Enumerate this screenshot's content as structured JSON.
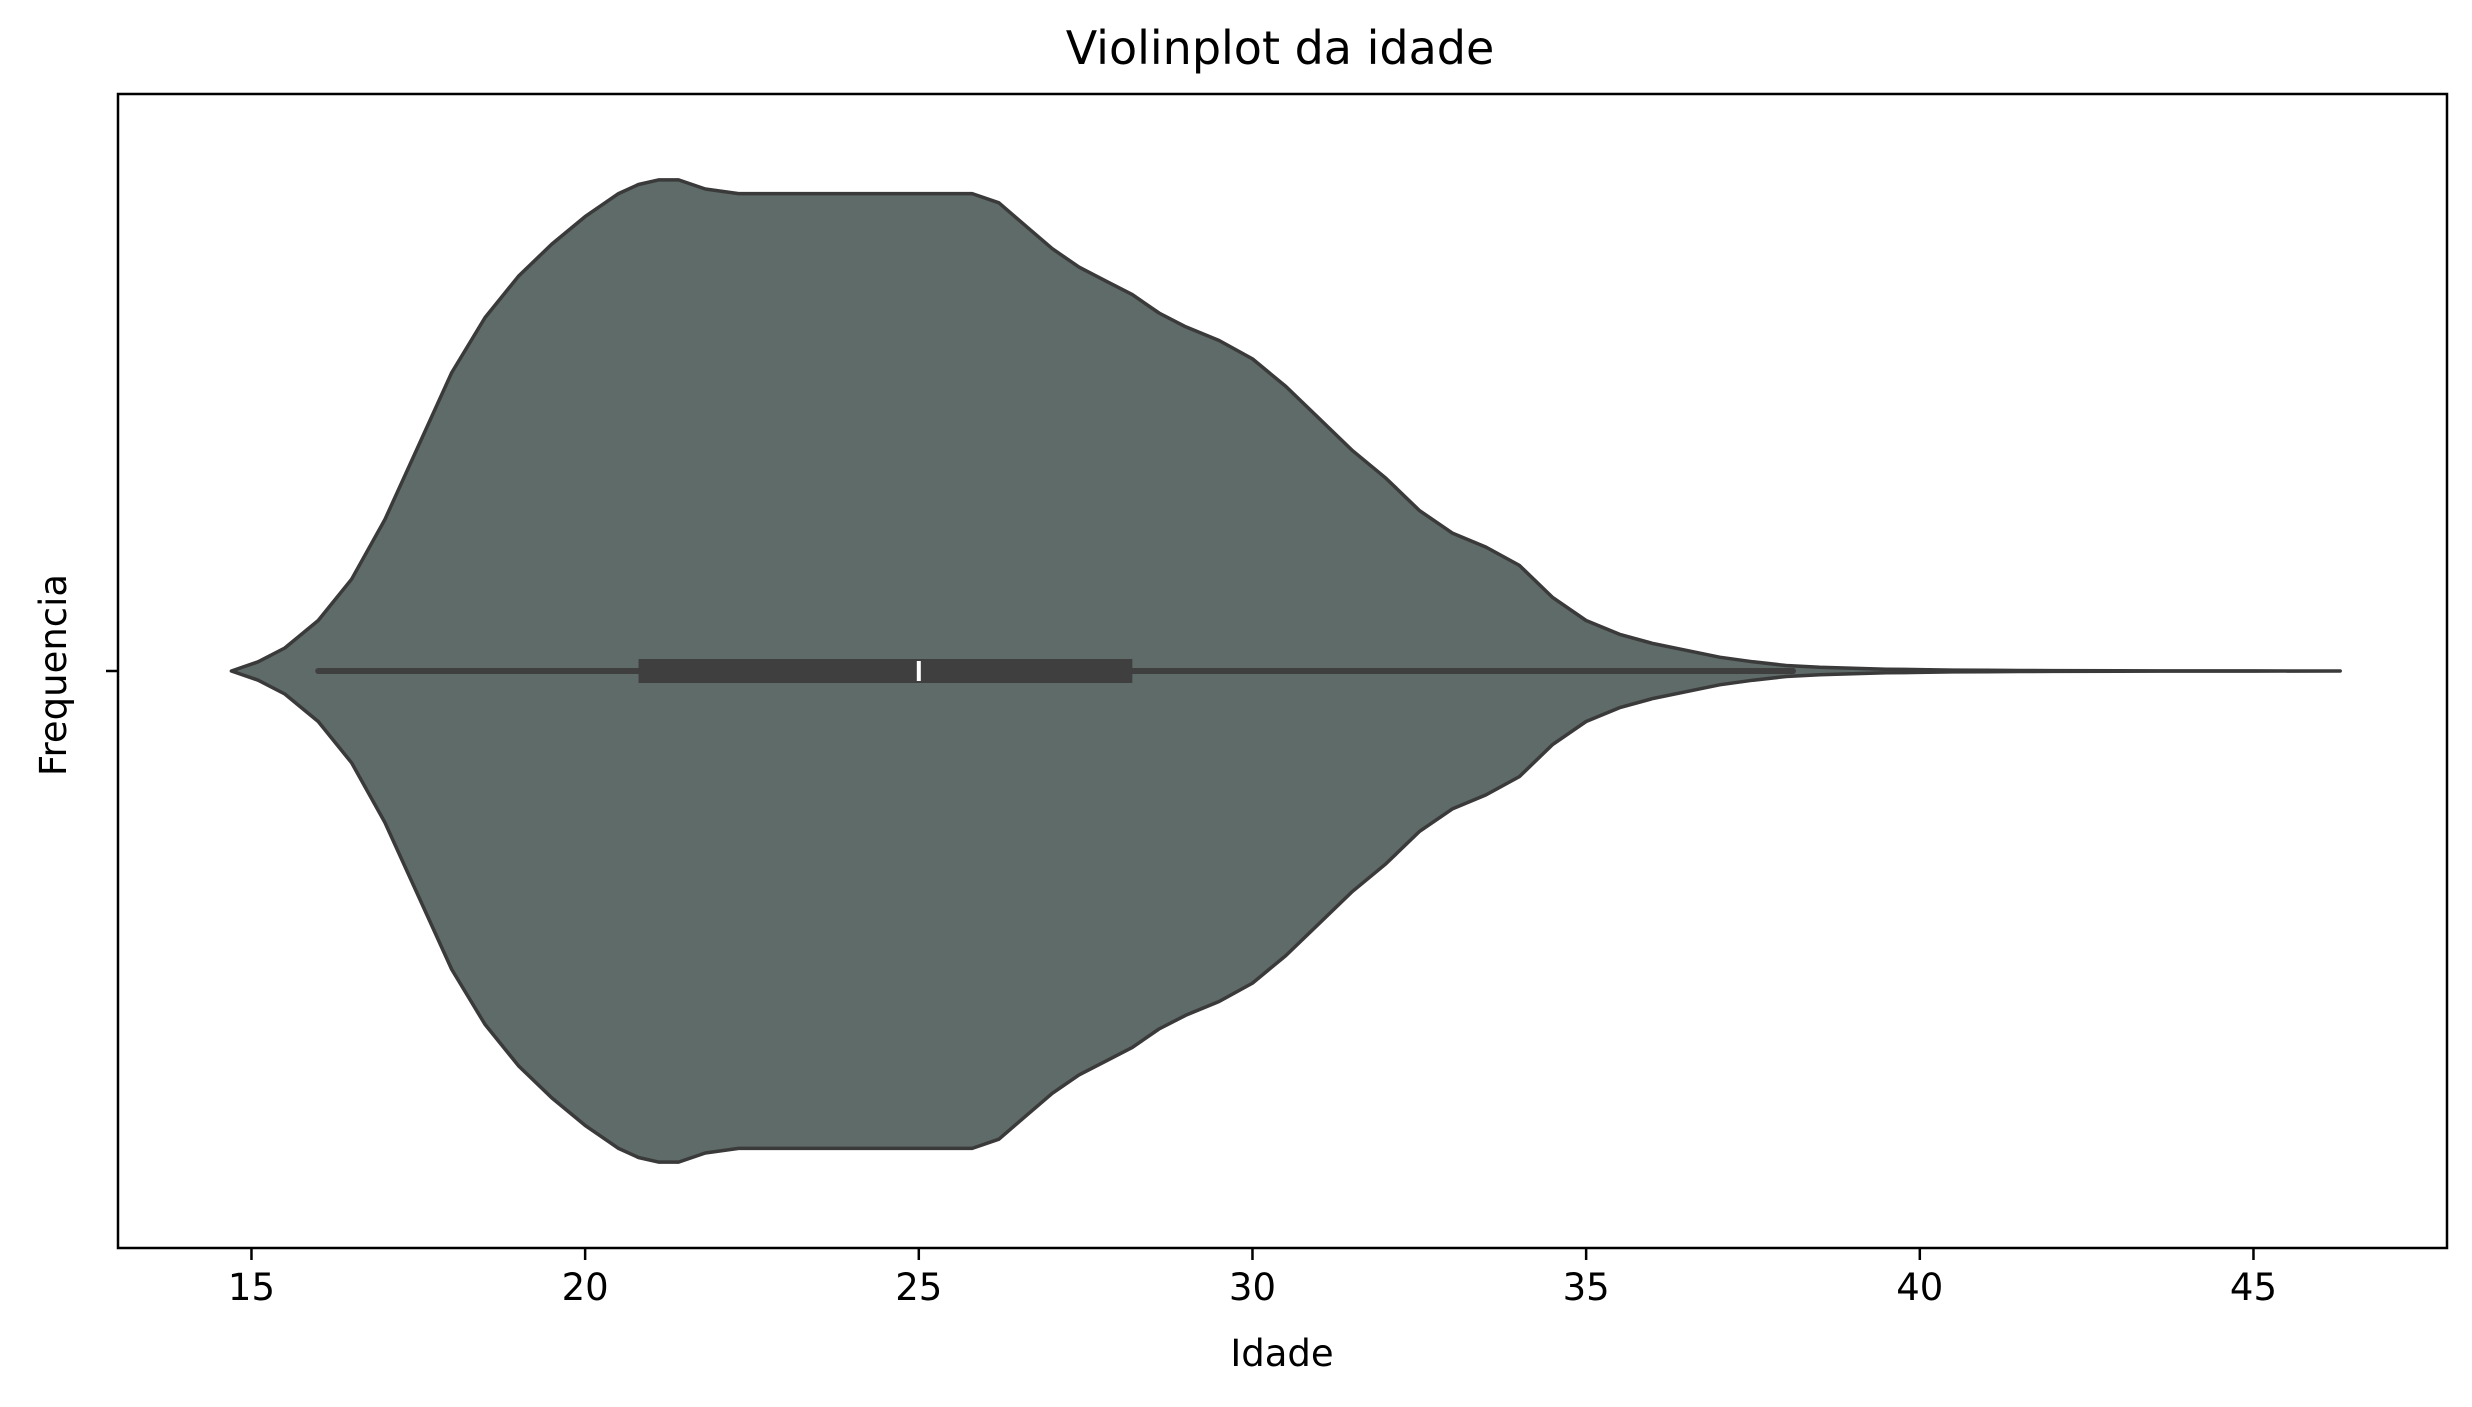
{
  "chart_data": {
    "type": "violin",
    "title": "Violinplot da idade",
    "xlabel": "Idade",
    "ylabel": "Frequencia",
    "xlim": [
      13,
      47.9
    ],
    "xticks": [
      15,
      20,
      25,
      30,
      35,
      40,
      45
    ],
    "fill_color": "#5e6b69",
    "edge_color": "#3a3a3a",
    "grid": false,
    "density": {
      "x": [
        14.7,
        15.1,
        15.5,
        16.0,
        16.5,
        17.0,
        17.5,
        18.0,
        18.5,
        19.0,
        19.5,
        20.0,
        20.5,
        20.8,
        21.1,
        21.4,
        21.8,
        22.3,
        22.8,
        23.3,
        23.9,
        24.4,
        24.8,
        25.3,
        25.8,
        26.2,
        26.6,
        27.0,
        27.4,
        27.8,
        28.2,
        28.6,
        29.0,
        29.5,
        30.0,
        30.5,
        31.0,
        31.5,
        32.0,
        32.5,
        33.0,
        33.5,
        34.0,
        34.5,
        35.0,
        35.5,
        36.0,
        36.5,
        37.0,
        37.5,
        38.0,
        38.5,
        39.0,
        39.5,
        40.0,
        40.5,
        41.0,
        41.5,
        42.0,
        43.0,
        44.0,
        45.0,
        46.3
      ],
      "y": [
        0.0,
        0.02,
        0.05,
        0.11,
        0.2,
        0.33,
        0.49,
        0.65,
        0.77,
        0.86,
        0.93,
        0.99,
        1.04,
        1.06,
        1.07,
        1.07,
        1.05,
        1.04,
        1.04,
        1.04,
        1.04,
        1.04,
        1.04,
        1.04,
        1.04,
        1.02,
        0.97,
        0.92,
        0.88,
        0.85,
        0.82,
        0.78,
        0.75,
        0.72,
        0.68,
        0.62,
        0.55,
        0.48,
        0.42,
        0.35,
        0.3,
        0.27,
        0.23,
        0.16,
        0.11,
        0.08,
        0.06,
        0.045,
        0.03,
        0.02,
        0.012,
        0.008,
        0.006,
        0.004,
        0.003,
        0.002,
        0.0015,
        0.001,
        0.0008,
        0.0005,
        0.0003,
        0.0002,
        0.0
      ]
    },
    "box": {
      "whisker_low": 16.0,
      "q1": 20.8,
      "median": 25.0,
      "q3": 28.2,
      "whisker_high": 38.1
    }
  }
}
